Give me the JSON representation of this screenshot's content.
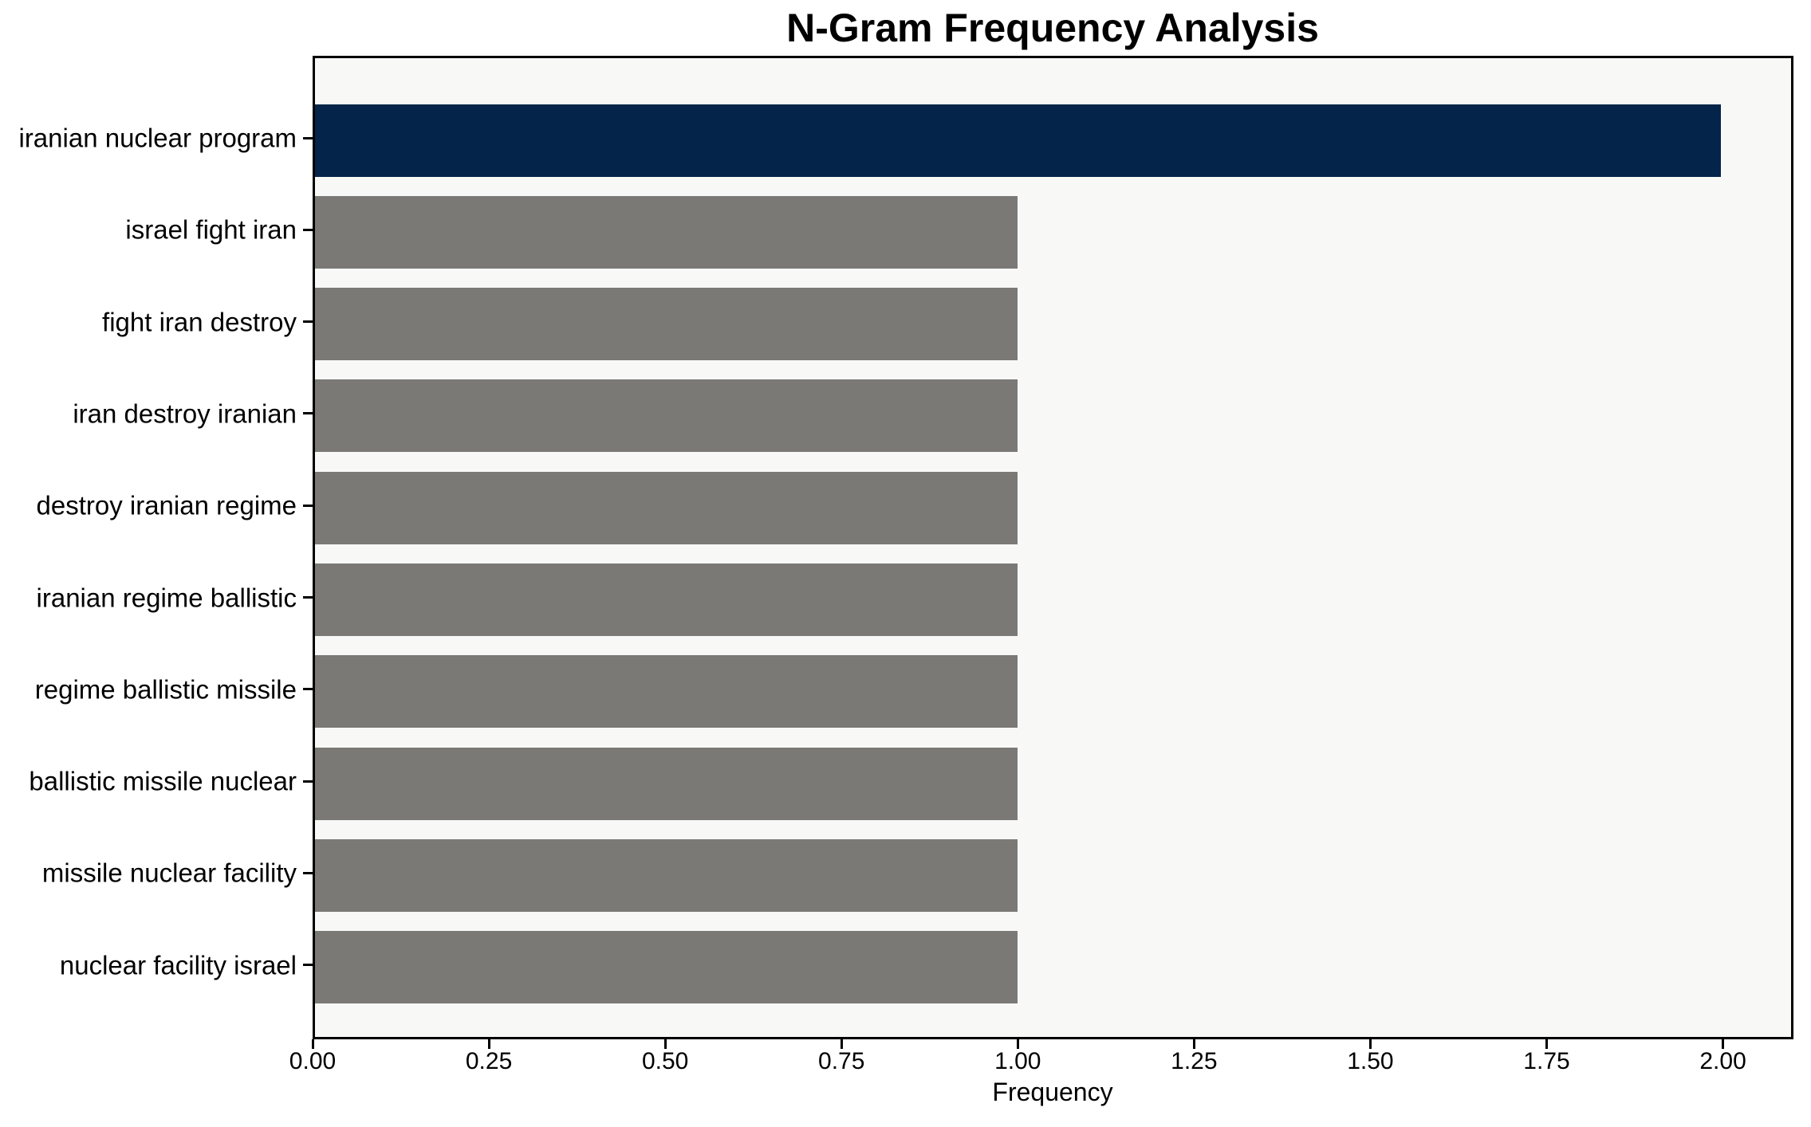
{
  "chart_data": {
    "type": "bar",
    "orientation": "horizontal",
    "title": "N-Gram Frequency Analysis",
    "xlabel": "Frequency",
    "ylabel": "",
    "categories": [
      "iranian nuclear program",
      "israel fight iran",
      "fight iran destroy",
      "iran destroy iranian",
      "destroy iranian regime",
      "iranian regime ballistic",
      "regime ballistic missile",
      "ballistic missile nuclear",
      "missile nuclear facility",
      "nuclear facility israel"
    ],
    "values": [
      2,
      1,
      1,
      1,
      1,
      1,
      1,
      1,
      1,
      1
    ],
    "bar_colors": [
      "#042549",
      "#7b7975",
      "#7b7975",
      "#7b7975",
      "#7b7975",
      "#7b7975",
      "#7b7975",
      "#7b7975",
      "#7b7975",
      "#7b7975"
    ],
    "xlim": [
      0,
      2.1
    ],
    "xticks": [
      0,
      0.25,
      0.5,
      0.75,
      1.0,
      1.25,
      1.5,
      1.75,
      2.0
    ],
    "xtick_labels": [
      "0.00",
      "0.25",
      "0.50",
      "0.75",
      "1.00",
      "1.25",
      "1.50",
      "1.75",
      "2.00"
    ],
    "grid": false,
    "legend_position": "none",
    "colors": {
      "highlight_bar": "#042549",
      "default_bar": "#7b7975",
      "plot_background": "#f8f8f7",
      "figure_background": "#ffffff",
      "axis_line": "#000000",
      "text": "#000000"
    }
  }
}
